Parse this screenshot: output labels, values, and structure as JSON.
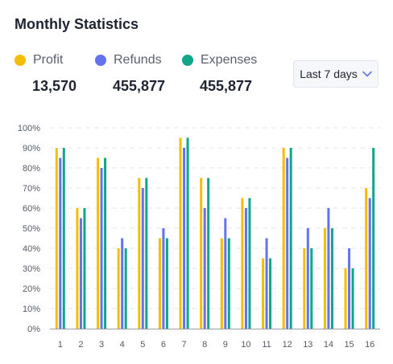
{
  "header": {
    "title": "Monthly Statistics"
  },
  "legend": [
    {
      "name": "Profit",
      "value": "13,570",
      "color": "#f5bd00"
    },
    {
      "name": "Refunds",
      "value": "455,877",
      "color": "#6373f0"
    },
    {
      "name": "Expenses",
      "value": "455,877",
      "color": "#10a68a"
    }
  ],
  "dropdown": {
    "label": "Last 7 days"
  },
  "chart_data": {
    "type": "bar",
    "categories": [
      "1",
      "2",
      "3",
      "4",
      "5",
      "6",
      "7",
      "8",
      "9",
      "10",
      "11",
      "12",
      "13",
      "14",
      "15",
      "16"
    ],
    "series": [
      {
        "name": "Profit",
        "values": [
          90,
          60,
          85,
          40,
          75,
          45,
          95,
          75,
          45,
          65,
          35,
          90,
          40,
          50,
          30,
          70
        ]
      },
      {
        "name": "Refunds",
        "values": [
          85,
          55,
          80,
          45,
          70,
          50,
          90,
          60,
          55,
          60,
          45,
          85,
          50,
          60,
          40,
          65
        ]
      },
      {
        "name": "Expenses",
        "values": [
          90,
          60,
          85,
          40,
          75,
          45,
          95,
          75,
          45,
          65,
          35,
          90,
          40,
          50,
          30,
          90
        ]
      }
    ],
    "y_ticks": [
      "0%",
      "10%",
      "20%",
      "30%",
      "40%",
      "50%",
      "60%",
      "70%",
      "80%",
      "90%",
      "100%"
    ],
    "ylim": [
      0,
      100
    ],
    "grid": true,
    "legend_position": "top-left"
  }
}
